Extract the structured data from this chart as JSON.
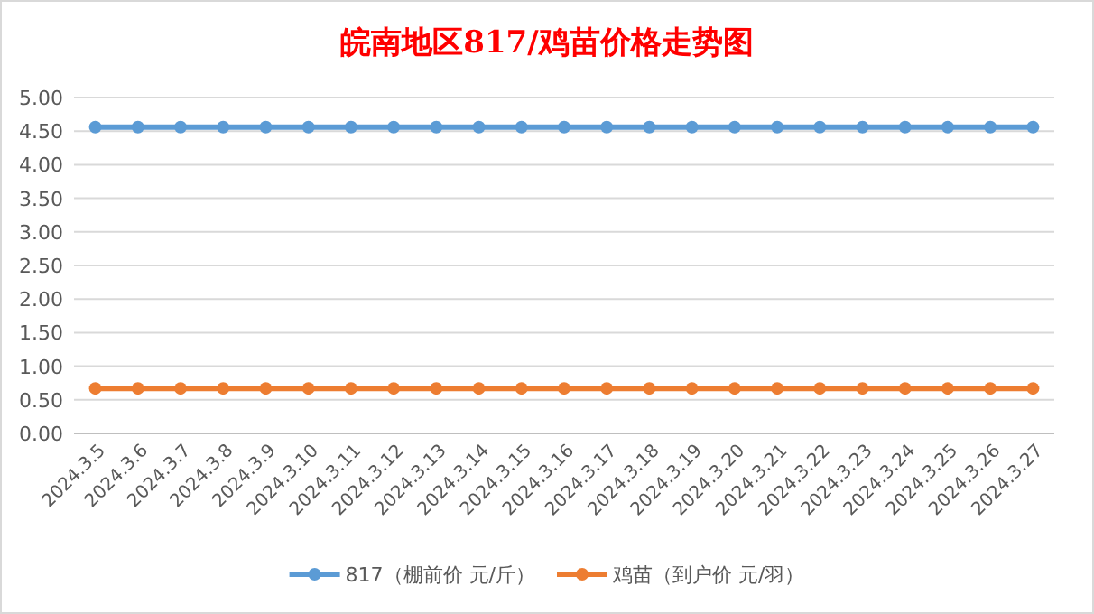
{
  "chart_data": {
    "type": "line",
    "title": "皖南地区817/鸡苗价格走势图",
    "categories": [
      "2024.3.5",
      "2024.3.6",
      "2024.3.7",
      "2024.3.8",
      "2024.3.9",
      "2024.3.10",
      "2024.3.11",
      "2024.3.12",
      "2024.3.13",
      "2024.3.14",
      "2024.3.15",
      "2024.3.16",
      "2024.3.17",
      "2024.3.18",
      "2024.3.19",
      "2024.3.20",
      "2024.3.21",
      "2024.3.22",
      "2024.3.23",
      "2024.3.24",
      "2024.3.25",
      "2024.3.26",
      "2024.3.27"
    ],
    "series": [
      {
        "name": "817（棚前价 元/斤）",
        "color": "#5b9bd5",
        "values": [
          4.56,
          4.56,
          4.56,
          4.56,
          4.56,
          4.56,
          4.56,
          4.56,
          4.56,
          4.56,
          4.56,
          4.56,
          4.56,
          4.56,
          4.56,
          4.56,
          4.56,
          4.56,
          4.56,
          4.56,
          4.56,
          4.56,
          4.56
        ]
      },
      {
        "name": "鸡苗（到户价 元/羽）",
        "color": "#ed7d31",
        "values": [
          0.67,
          0.67,
          0.67,
          0.67,
          0.67,
          0.67,
          0.67,
          0.67,
          0.67,
          0.67,
          0.67,
          0.67,
          0.67,
          0.67,
          0.67,
          0.67,
          0.67,
          0.67,
          0.67,
          0.67,
          0.67,
          0.67,
          0.67
        ]
      }
    ],
    "ylim": [
      0,
      5
    ],
    "yticks": [
      {
        "value": 0,
        "label": "0.00"
      },
      {
        "value": 0.5,
        "label": "0.50"
      },
      {
        "value": 1,
        "label": "1.00"
      },
      {
        "value": 1.5,
        "label": "1.50"
      },
      {
        "value": 2,
        "label": "2.00"
      },
      {
        "value": 2.5,
        "label": "2.50"
      },
      {
        "value": 3,
        "label": "3.00"
      },
      {
        "value": 3.5,
        "label": "3.50"
      },
      {
        "value": 4,
        "label": "4.00"
      },
      {
        "value": 4.5,
        "label": "4.50"
      },
      {
        "value": 5,
        "label": "5.00"
      }
    ],
    "grid": "y",
    "legend": "bottom",
    "marker": "circle",
    "line_style": "solid"
  }
}
